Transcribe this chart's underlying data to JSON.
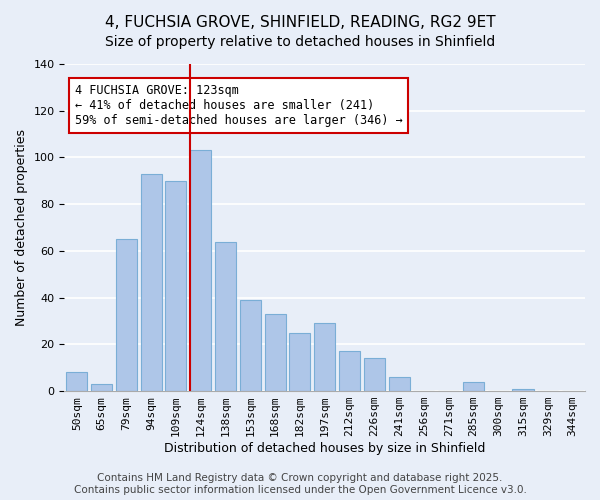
{
  "title": "4, FUCHSIA GROVE, SHINFIELD, READING, RG2 9ET",
  "subtitle": "Size of property relative to detached houses in Shinfield",
  "xlabel": "Distribution of detached houses by size in Shinfield",
  "ylabel": "Number of detached properties",
  "categories": [
    "50sqm",
    "65sqm",
    "79sqm",
    "94sqm",
    "109sqm",
    "124sqm",
    "138sqm",
    "153sqm",
    "168sqm",
    "182sqm",
    "197sqm",
    "212sqm",
    "226sqm",
    "241sqm",
    "256sqm",
    "271sqm",
    "285sqm",
    "300sqm",
    "315sqm",
    "329sqm",
    "344sqm"
  ],
  "values": [
    8,
    3,
    65,
    93,
    90,
    103,
    64,
    39,
    33,
    25,
    29,
    17,
    14,
    6,
    0,
    0,
    4,
    0,
    1,
    0,
    0
  ],
  "bar_color": "#aec6e8",
  "bar_edge_color": "#7aaed6",
  "vline_index": 5,
  "vline_color": "#cc0000",
  "annotation_text": "4 FUCHSIA GROVE: 123sqm\n← 41% of detached houses are smaller (241)\n59% of semi-detached houses are larger (346) →",
  "annotation_box_color": "#ffffff",
  "annotation_box_edge_color": "#cc0000",
  "ylim": [
    0,
    140
  ],
  "yticks": [
    0,
    20,
    40,
    60,
    80,
    100,
    120,
    140
  ],
  "background_color": "#e8eef8",
  "footer_line1": "Contains HM Land Registry data © Crown copyright and database right 2025.",
  "footer_line2": "Contains public sector information licensed under the Open Government Licence v3.0.",
  "title_fontsize": 11,
  "subtitle_fontsize": 10,
  "xlabel_fontsize": 9,
  "ylabel_fontsize": 9,
  "tick_fontsize": 8,
  "annotation_fontsize": 8.5,
  "footer_fontsize": 7.5
}
